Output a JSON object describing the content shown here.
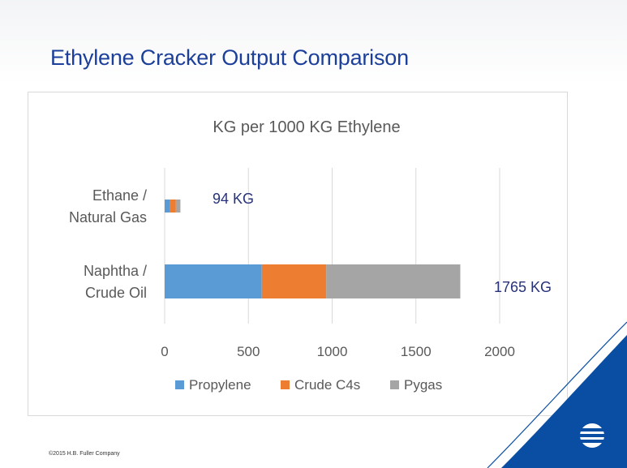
{
  "slide": {
    "title": "Ethylene Cracker Output Comparison",
    "footer": "©2015 H.B. Fuller Company"
  },
  "annotations": {
    "ethane_total": "94 KG",
    "naphtha_total": "1765 KG"
  },
  "colors": {
    "title": "#1b3f9a",
    "propylene": "#5b9bd5",
    "crude_c4s": "#ed7d31",
    "pygas": "#a5a5a5",
    "brand_blue": "#0a4ea3"
  },
  "chart_data": {
    "type": "bar",
    "orientation": "horizontal",
    "stacked": true,
    "title": "KG per 1000 KG Ethylene",
    "categories": [
      "Ethane / Natural Gas",
      "Naphtha / Crude Oil"
    ],
    "category_lines": [
      [
        "Ethane /",
        "Natural Gas"
      ],
      [
        "Naphtha /",
        "Crude Oil"
      ]
    ],
    "series": [
      {
        "name": "Propylene",
        "values": [
          33,
          580
        ],
        "color": "#5b9bd5"
      },
      {
        "name": "Crude C4s",
        "values": [
          34,
          385
        ],
        "color": "#ed7d31"
      },
      {
        "name": "Pygas",
        "values": [
          27,
          800
        ],
        "color": "#a5a5a5"
      }
    ],
    "xlim": [
      0,
      2000
    ],
    "xticks": [
      0,
      500,
      1000,
      1500,
      2000
    ],
    "grid": true,
    "legend": "bottom"
  }
}
